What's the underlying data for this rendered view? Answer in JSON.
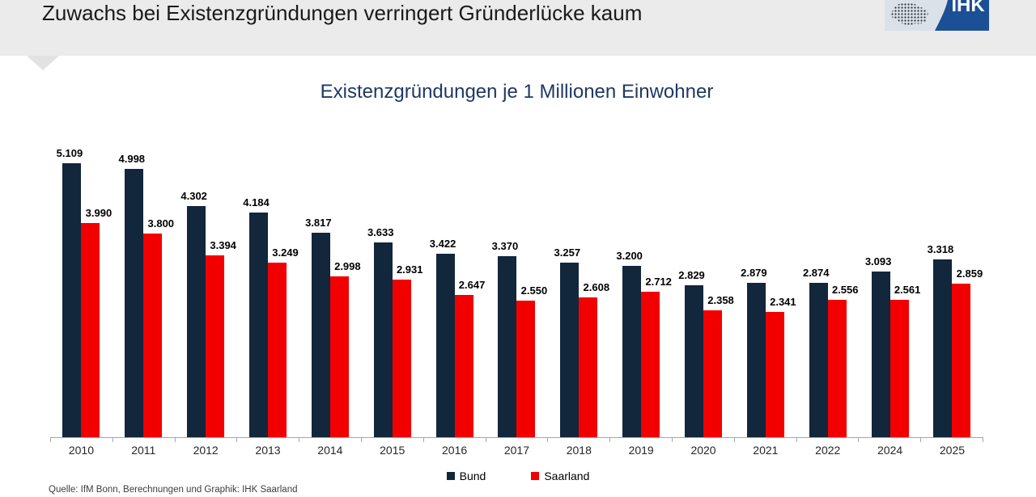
{
  "header": {
    "title": "Zuwachs bei Existenzgründungen verringert Gründerlücke kaum",
    "background": "#ebebeb"
  },
  "logo": {
    "text": "IHK",
    "organization": "IHK Saarland",
    "brand_blue": "#1b4f96",
    "map_panel_bg": "#dbe1e9",
    "map_dot_color": "#2a3038"
  },
  "chart_data": {
    "type": "bar",
    "title": "Existenzgründungen je 1 Millionen Einwohner",
    "title_color": "#1f3864",
    "categories": [
      "2010",
      "2011",
      "2012",
      "2013",
      "2014",
      "2015",
      "2016",
      "2017",
      "2018",
      "2019",
      "2020",
      "2021",
      "2022",
      "2024",
      "2025"
    ],
    "series": [
      {
        "name": "Bund",
        "color": "#12263c",
        "values": [
          5109,
          4998,
          4302,
          4184,
          3817,
          3633,
          3422,
          3370,
          3257,
          3200,
          2829,
          2879,
          2874,
          3093,
          3318
        ],
        "labels": [
          "5.109",
          "4.998",
          "4.302",
          "4.184",
          "3.817",
          "3.633",
          "3.422",
          "3.370",
          "3.257",
          "3.200",
          "2.829",
          "2.879",
          "2.874",
          "3.093",
          "3.318"
        ]
      },
      {
        "name": "Saarland",
        "color": "#f20000",
        "values": [
          3990,
          3800,
          3394,
          3249,
          2998,
          2931,
          2647,
          2550,
          2608,
          2712,
          2358,
          2341,
          2556,
          2561,
          2859
        ],
        "labels": [
          "3.990",
          "3.800",
          "3.394",
          "3.249",
          "2.998",
          "2.931",
          "2.647",
          "2.550",
          "2.608",
          "2.712",
          "2.358",
          "2.341",
          "2.556",
          "2.561",
          "2.859"
        ]
      }
    ],
    "ylim": [
      0,
      5500
    ],
    "grid": false,
    "legend_position": "bottom",
    "axis_color": "#a6a6a6"
  },
  "footer": {
    "source": "Quelle: IfM Bonn, Berechnungen und Graphik: IHK Saarland"
  }
}
